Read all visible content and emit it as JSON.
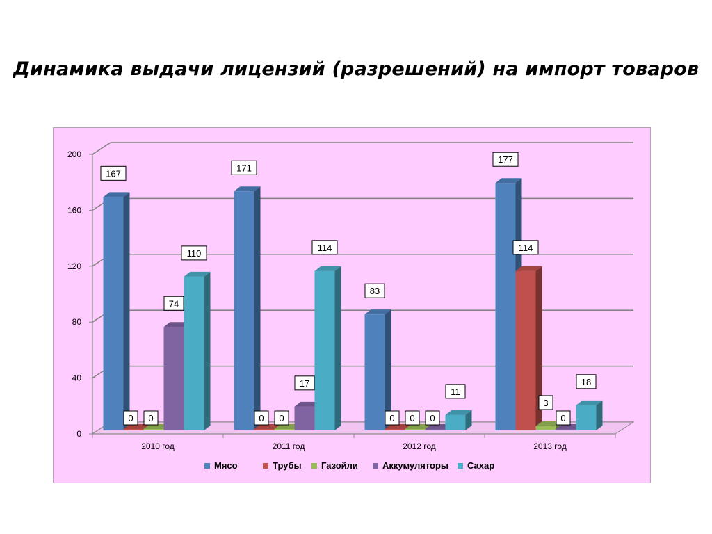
{
  "title": "Динамика выдачи лицензий (разрешений) на импорт товаров",
  "colors": {
    "background": "#ffccff",
    "series": [
      "#4f81bd",
      "#c0504d",
      "#9bbb59",
      "#8064a2",
      "#4bacc6"
    ]
  },
  "chart_data": {
    "type": "bar",
    "title": "",
    "xlabel": "",
    "ylabel": "",
    "ylim": [
      0,
      200
    ],
    "yticks": [
      0,
      40,
      80,
      120,
      160,
      200
    ],
    "grid": true,
    "legend_position": "bottom",
    "categories": [
      "2010 год",
      "2011 год",
      "2012 год",
      "2013 год"
    ],
    "series": [
      {
        "name": "Мясо",
        "values": [
          167,
          171,
          83,
          177
        ]
      },
      {
        "name": "Трубы",
        "values": [
          0,
          0,
          0,
          114
        ]
      },
      {
        "name": "Газойли",
        "values": [
          0,
          0,
          0,
          3
        ]
      },
      {
        "name": "Аккумуляторы",
        "values": [
          74,
          17,
          0,
          0
        ]
      },
      {
        "name": "Сахар",
        "values": [
          110,
          114,
          11,
          18
        ]
      }
    ]
  }
}
